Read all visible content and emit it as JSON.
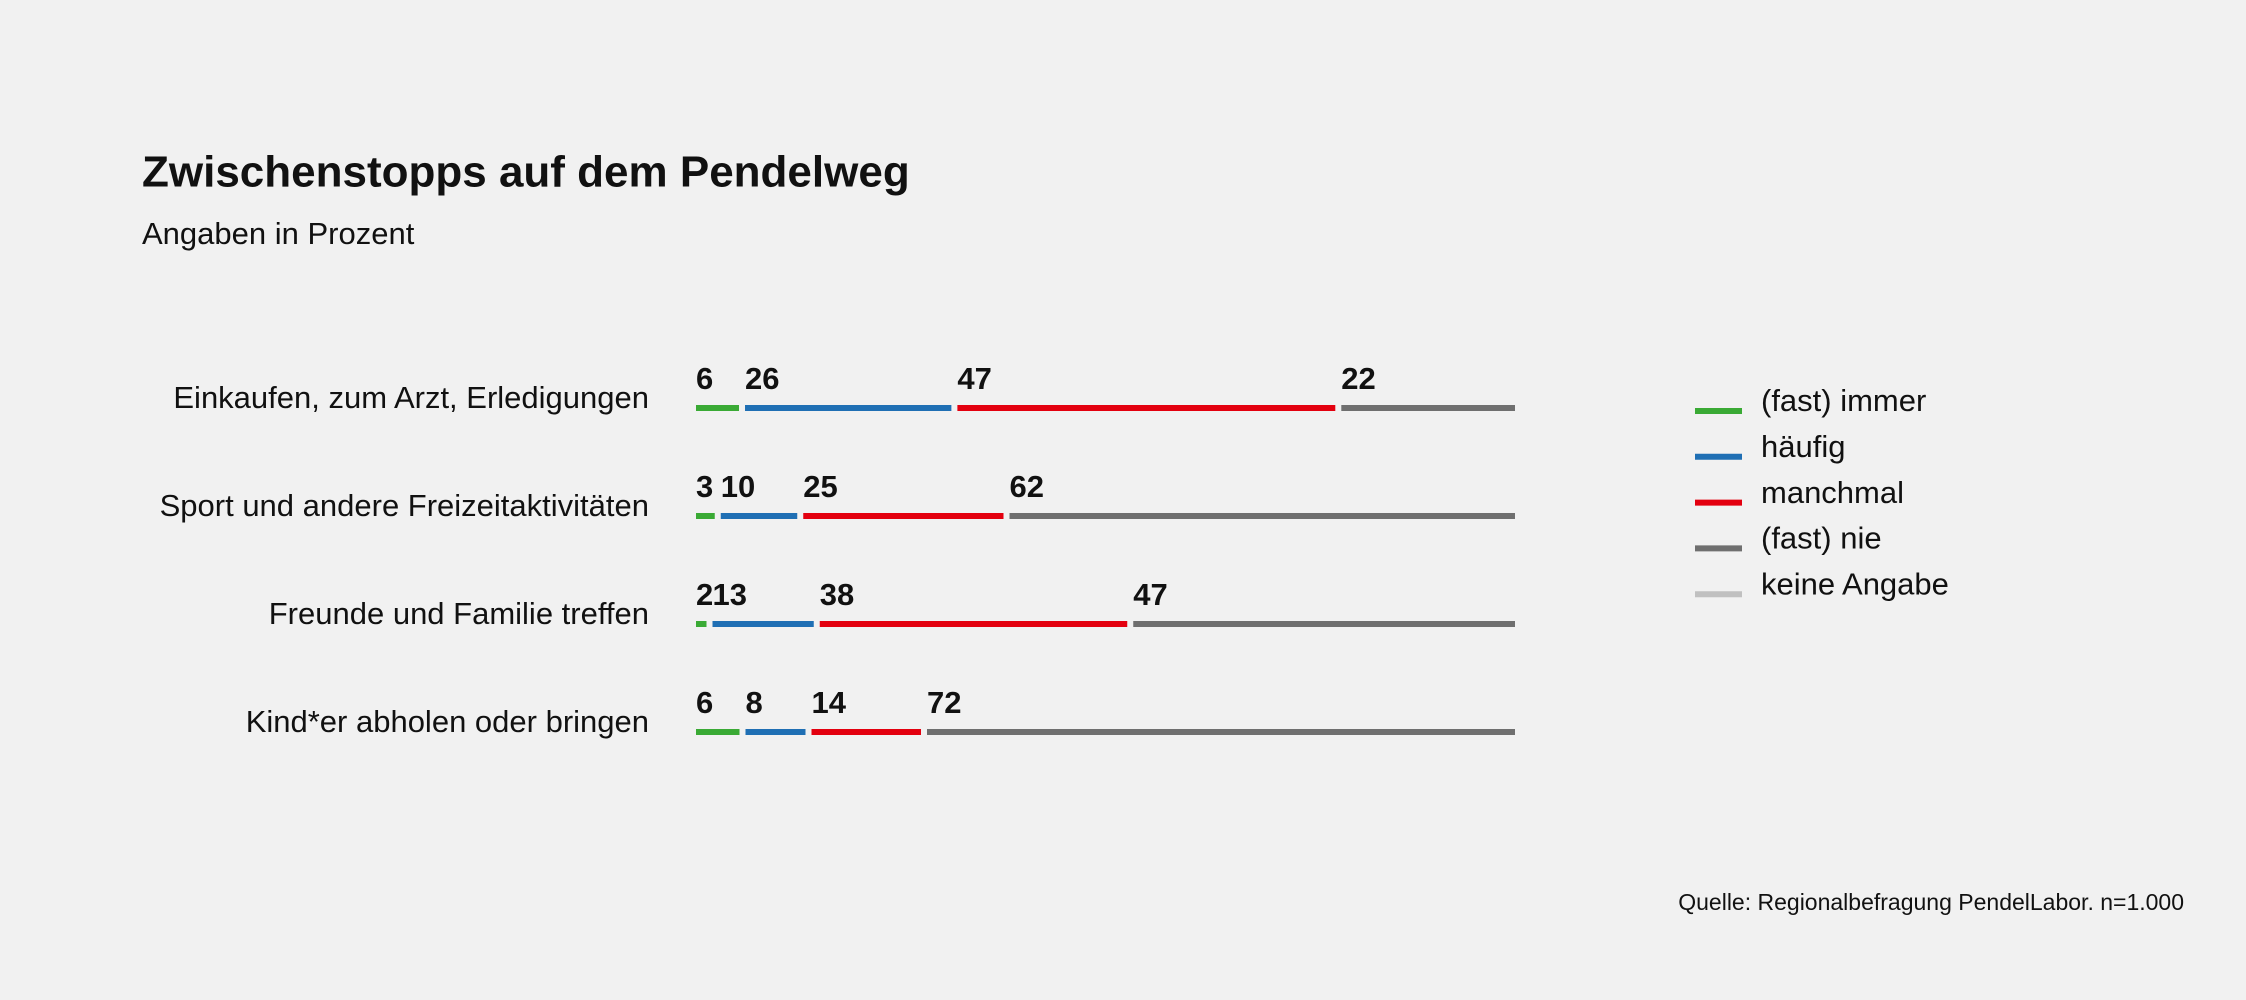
{
  "chart_data": {
    "type": "stacked-bar",
    "title": "Zwischenstopps auf dem Pendelweg",
    "subtitle": "Angaben in Prozent",
    "source": "Quelle: Regionalbefragung PendelLabor. n=1.000",
    "categories": [
      "Einkaufen, zum Arzt, Erledigungen",
      "Sport und andere Freizeitaktivitäten",
      "Freunde und Familie treffen",
      "Kind*er abholen oder bringen"
    ],
    "series": [
      {
        "name": "(fast) immer",
        "color": "#3aaa35",
        "values": [
          6,
          3,
          2,
          6
        ]
      },
      {
        "name": "häufig",
        "color": "#1f6fb4",
        "values": [
          26,
          10,
          13,
          8
        ]
      },
      {
        "name": "manchmal",
        "color": "#e3000f",
        "values": [
          47,
          25,
          38,
          14
        ]
      },
      {
        "name": "(fast) nie",
        "color": "#6f6f6f",
        "values": [
          22,
          62,
          47,
          72
        ]
      },
      {
        "name": "keine Angabe",
        "color": "#c0c0c0",
        "values": [
          null,
          null,
          null,
          null
        ]
      }
    ],
    "legend": "right"
  }
}
